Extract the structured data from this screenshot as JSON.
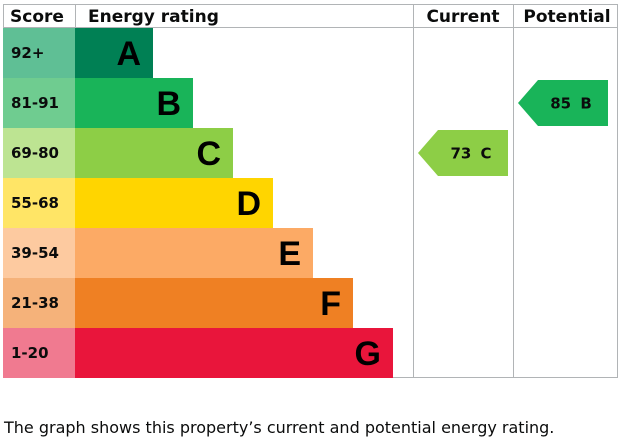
{
  "chart_data": {
    "type": "table",
    "headers": {
      "score": "Score",
      "rating": "Energy rating",
      "current": "Current",
      "potential": "Potential"
    },
    "bands": [
      {
        "letter": "A",
        "range": "92+",
        "min": 92,
        "max": 100,
        "color": "#008054",
        "score_bg": "#5fbf95"
      },
      {
        "letter": "B",
        "range": "81-91",
        "min": 81,
        "max": 91,
        "color": "#19b459",
        "score_bg": "#6fcc90"
      },
      {
        "letter": "C",
        "range": "69-80",
        "min": 69,
        "max": 80,
        "color": "#8dce46",
        "score_bg": "#bde492"
      },
      {
        "letter": "D",
        "range": "55-68",
        "min": 55,
        "max": 68,
        "color": "#ffd500",
        "score_bg": "#ffe566"
      },
      {
        "letter": "E",
        "range": "39-54",
        "min": 39,
        "max": 54,
        "color": "#fcaa65",
        "score_bg": "#fdcaa0"
      },
      {
        "letter": "F",
        "range": "21-38",
        "min": 21,
        "max": 38,
        "color": "#ef8023",
        "score_bg": "#f5b27a"
      },
      {
        "letter": "G",
        "range": "1-20",
        "min": 1,
        "max": 20,
        "color": "#e9153b",
        "score_bg": "#f07a90"
      }
    ],
    "current": {
      "value": 73,
      "band": "C",
      "label": "73 C",
      "color": "#8dce46",
      "text_color": "#0b0c0c"
    },
    "potential": {
      "value": 85,
      "band": "B",
      "label": "85 B",
      "color": "#19b459",
      "text_color": "#0b0c0c"
    }
  },
  "caption": "The graph shows this property’s current and potential energy rating."
}
